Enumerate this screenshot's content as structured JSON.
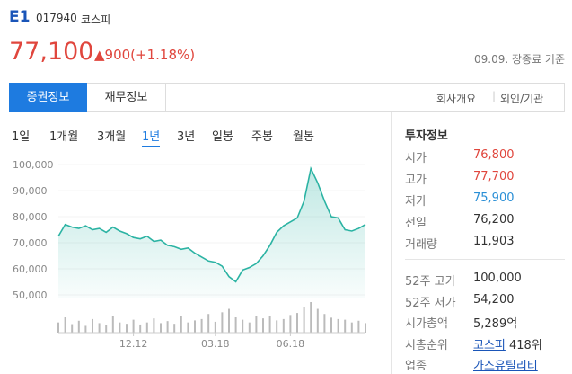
{
  "header": {
    "code_name": "E1",
    "code": "017940",
    "market": "코스피",
    "price": "77,100",
    "change": "▲900(+1.18%)",
    "date": "09.09. 장종료 기준"
  },
  "tabs": [
    "증권정보",
    "재무정보"
  ],
  "links": [
    "회사개요",
    "외인/기관"
  ],
  "periods": [
    "1일",
    "1개월",
    "3개월",
    "1년",
    "3년",
    "일봉",
    "주봉",
    "월봉"
  ],
  "selected_period": 3,
  "chart_data": {
    "type": "line",
    "color": "#2bb3a3",
    "values": [
      72500,
      77000,
      76000,
      75500,
      76500,
      75000,
      75500,
      74000,
      76000,
      74500,
      73500,
      72000,
      71500,
      72500,
      70500,
      71000,
      69000,
      68500,
      67500,
      68000,
      66000,
      64500,
      63000,
      62500,
      61000,
      57000,
      55000,
      59500,
      60500,
      62000,
      65000,
      69000,
      74000,
      76500,
      78000,
      79500,
      86000,
      98500,
      93000,
      86000,
      80000,
      79500,
      75000,
      74500,
      75500,
      77000
    ],
    "volume": [
      30,
      45,
      25,
      35,
      20,
      40,
      28,
      22,
      50,
      30,
      26,
      38,
      24,
      30,
      42,
      28,
      34,
      26,
      48,
      30,
      36,
      40,
      55,
      32,
      60,
      70,
      45,
      38,
      30,
      50,
      42,
      48,
      36,
      40,
      52,
      58,
      75,
      90,
      70,
      55,
      44,
      40,
      38,
      30,
      35,
      28
    ],
    "ylim": [
      48600,
      102800
    ],
    "yticks": [
      {
        "value": 100000,
        "label": "100,000"
      },
      {
        "value": 90000,
        "label": "90,000"
      },
      {
        "value": 80000,
        "label": "80,000"
      },
      {
        "value": 70000,
        "label": "70,000"
      },
      {
        "value": 60000,
        "label": "60,000"
      },
      {
        "value": 50000,
        "label": "50,000"
      }
    ],
    "xticks": [
      {
        "value": 11,
        "label": "12.12"
      },
      {
        "value": 23,
        "label": "03.18"
      },
      {
        "value": 34,
        "label": "06.18"
      }
    ]
  },
  "info": {
    "title": "투자정보",
    "rows": [
      {
        "label": "시가",
        "value": "76,800",
        "color": "#e0463d"
      },
      {
        "label": "고가",
        "value": "77,700",
        "color": "#e0463d"
      },
      {
        "label": "저가",
        "value": "75,900",
        "color": "#2a8fd6"
      },
      {
        "label": "전일",
        "value": "76,200"
      },
      {
        "label": "거래량",
        "value": "11,903"
      }
    ],
    "rows2": [
      {
        "label": "52주 고가",
        "value": "100,000"
      },
      {
        "label": "52주 저가",
        "value": "54,200"
      },
      {
        "label": "시가총액",
        "value": "5,289억"
      },
      {
        "label": "시총순위",
        "link": "코스피",
        "value": "418위"
      },
      {
        "label": "업종",
        "link": "가스유틸리티"
      }
    ]
  }
}
